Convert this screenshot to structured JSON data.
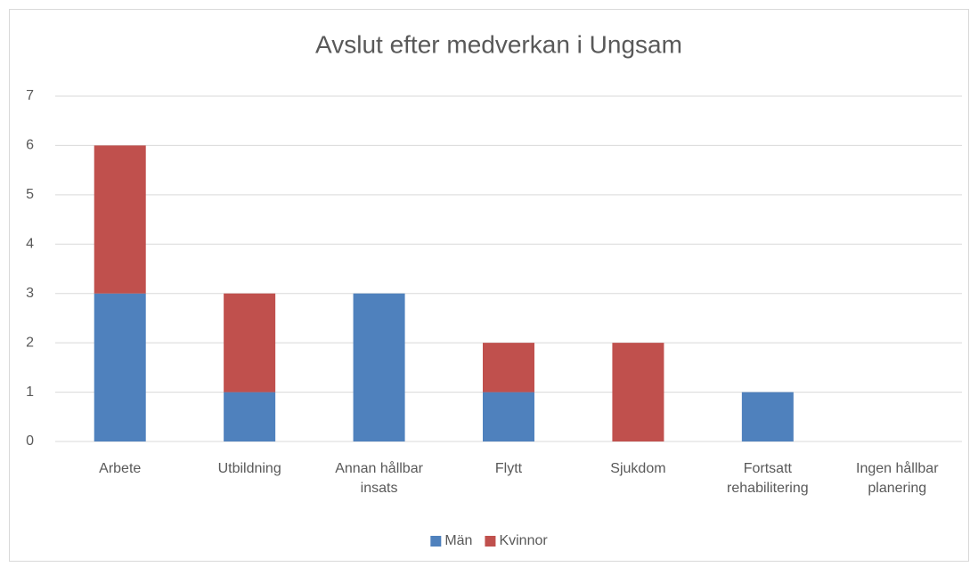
{
  "chart_data": {
    "type": "bar",
    "stacked": true,
    "title": "Avslut efter medverkan i Ungsam",
    "categories": [
      "Arbete",
      "Utbildning",
      "Annan hållbar insats",
      "Flytt",
      "Sjukdom",
      "Fortsatt rehabilitering",
      "Ingen hållbar planering"
    ],
    "series": [
      {
        "name": "Män",
        "color": "#4f81bd",
        "values": [
          3,
          1,
          3,
          1,
          0,
          1,
          0
        ]
      },
      {
        "name": "Kvinnor",
        "color": "#c0504d",
        "values": [
          3,
          2,
          0,
          1,
          2,
          0,
          0
        ]
      }
    ],
    "ylim": [
      0,
      7
    ],
    "yticks": [
      0,
      1,
      2,
      3,
      4,
      5,
      6,
      7
    ],
    "grid": true,
    "legend": "bottom"
  }
}
